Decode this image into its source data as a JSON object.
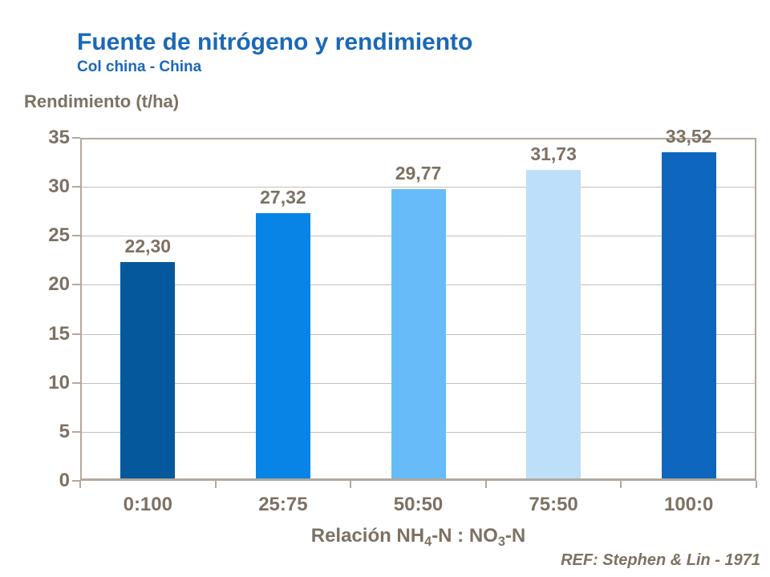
{
  "header": {
    "title": "Fuente de nitrógeno y rendimiento",
    "subtitle": "Col china - China"
  },
  "chart_data": {
    "type": "bar",
    "title": "Fuente de nitrógeno y rendimiento",
    "subtitle": "Col china - China",
    "ylabel": "Rendimiento (t/ha)",
    "xlabel": "Relación NH4-N : NO3-N",
    "xlabel_parts": [
      {
        "text": "Relación NH"
      },
      {
        "sub": "4"
      },
      {
        "text": "-N : NO"
      },
      {
        "sub": "3"
      },
      {
        "text": "-N"
      }
    ],
    "categories": [
      "0:100",
      "25:75",
      "50:50",
      "75:50",
      "100:0"
    ],
    "values": [
      22.3,
      27.32,
      29.77,
      31.73,
      33.52
    ],
    "value_labels": [
      "22,30",
      "27,32",
      "29,77",
      "31,73",
      "33,52"
    ],
    "bar_colors": [
      "#05589B",
      "#0884E6",
      "#66BBF8",
      "#BEDFF9",
      "#0E66BE"
    ],
    "ylim": [
      0,
      35
    ],
    "yticks": [
      0,
      5,
      10,
      15,
      20,
      25,
      30,
      35
    ],
    "grid": true,
    "legend": "none"
  },
  "footer": {
    "ref": "REF: Stephen & Lin - 1971"
  },
  "colors": {
    "title_blue": "#1B68B8",
    "text_brown": "#7C7163",
    "axis_line": "#B2A99D",
    "gridline": "#C4BFB7",
    "background": "#FFFFFF"
  }
}
